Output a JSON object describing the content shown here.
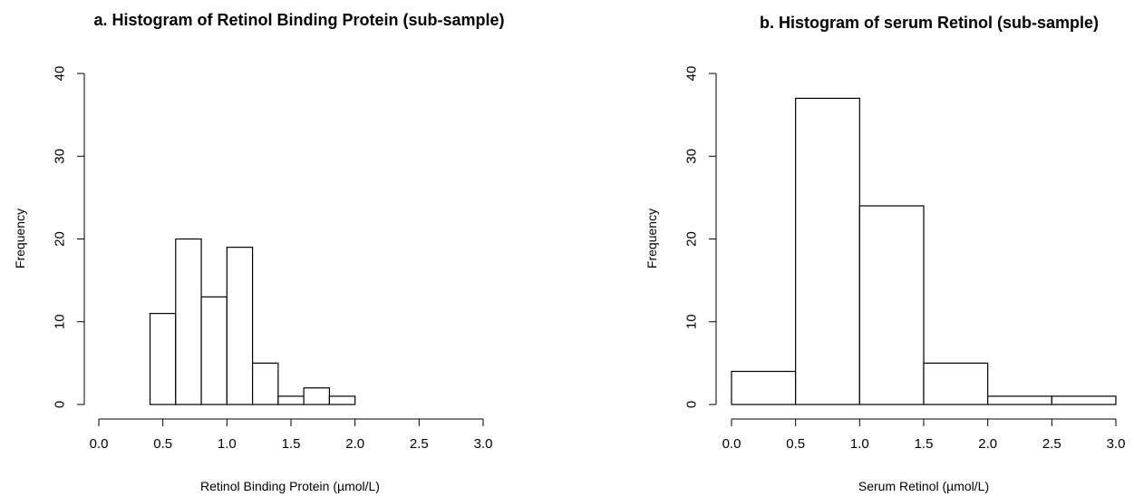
{
  "chart_data": [
    {
      "id": "a",
      "type": "bar",
      "title": "a. Histogram of Retinol Binding Protein (sub-sample)",
      "xlabel": "Retinol Binding Protein (µmol/L)",
      "ylabel": "Frequency",
      "xlim": [
        0,
        3
      ],
      "ylim": [
        0,
        40
      ],
      "xticks": [
        "0.0",
        "0.5",
        "1.0",
        "1.5",
        "2.0",
        "2.5",
        "3.0"
      ],
      "yticks": [
        "0",
        "10",
        "20",
        "30",
        "40"
      ],
      "bins": [
        {
          "x0": 0.4,
          "x1": 0.6,
          "count": 11
        },
        {
          "x0": 0.6,
          "x1": 0.8,
          "count": 20
        },
        {
          "x0": 0.8,
          "x1": 1.0,
          "count": 13
        },
        {
          "x0": 1.0,
          "x1": 1.2,
          "count": 19
        },
        {
          "x0": 1.2,
          "x1": 1.4,
          "count": 5
        },
        {
          "x0": 1.4,
          "x1": 1.6,
          "count": 1
        },
        {
          "x0": 1.6,
          "x1": 1.8,
          "count": 2
        },
        {
          "x0": 1.8,
          "x1": 2.0,
          "count": 1
        }
      ],
      "grid": false
    },
    {
      "id": "b",
      "type": "bar",
      "title": "b. Histogram of serum Retinol (sub-sample)",
      "xlabel": "Serum Retinol (µmol/L)",
      "ylabel": "Frequency",
      "xlim": [
        0,
        3
      ],
      "ylim": [
        0,
        40
      ],
      "xticks": [
        "0.0",
        "0.5",
        "1.0",
        "1.5",
        "2.0",
        "2.5",
        "3.0"
      ],
      "yticks": [
        "0",
        "10",
        "20",
        "30",
        "40"
      ],
      "bins": [
        {
          "x0": 0.0,
          "x1": 0.5,
          "count": 4
        },
        {
          "x0": 0.5,
          "x1": 1.0,
          "count": 37
        },
        {
          "x0": 1.0,
          "x1": 1.5,
          "count": 24
        },
        {
          "x0": 1.5,
          "x1": 2.0,
          "count": 5
        },
        {
          "x0": 2.0,
          "x1": 2.5,
          "count": 1
        },
        {
          "x0": 2.5,
          "x1": 3.0,
          "count": 1
        }
      ],
      "grid": false
    }
  ]
}
